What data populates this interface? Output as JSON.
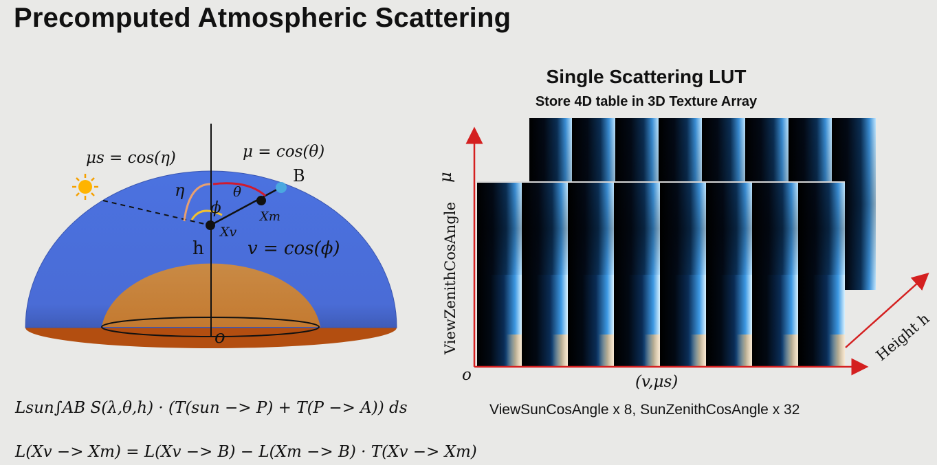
{
  "title": "Precomputed Atmospheric Scattering",
  "diagram": {
    "label_mu_s": "μs = cos(η)",
    "label_mu": "μ = cos(θ)",
    "label_B": "B",
    "label_eta": "η",
    "label_theta": "θ",
    "label_phi": "ϕ",
    "label_xm": "Xm",
    "label_xv": "Xv",
    "label_h": "h",
    "label_nu": "v = cos(ϕ)",
    "label_o": "o",
    "sun_icon": "sun-icon",
    "colors": {
      "atmosphere": "#4a6fdc",
      "ground_top": "#c8843d",
      "ground_base": "#b5500f",
      "eta_arc": "#e8a070",
      "theta_arc": "#d01a2e",
      "phi_arc": "#f0c030",
      "point_b": "#4aa8e0"
    }
  },
  "formula_1": "Lsun∫AB S(λ,θ,h) · (T(sun −> P) + T(P −> A)) ds",
  "formula_2": "L(Xv −> Xm) = L(Xv −> B) − L(Xm −> B) · T(Xv −> Xm)",
  "lut": {
    "title": "Single Scattering LUT",
    "subtitle": "Store 4D table in 3D Texture Array",
    "y_axis_label": "ViewZenithCosAngle",
    "y_axis_symbol": "μ",
    "origin": "o",
    "x_axis_label": "(v,μs)",
    "depth_axis_label": "Height  h",
    "caption": "ViewSunCosAngle x 8, SunZenithCosAngle x 32",
    "columns_per_layer": 8,
    "axis_color": "#d42020"
  }
}
